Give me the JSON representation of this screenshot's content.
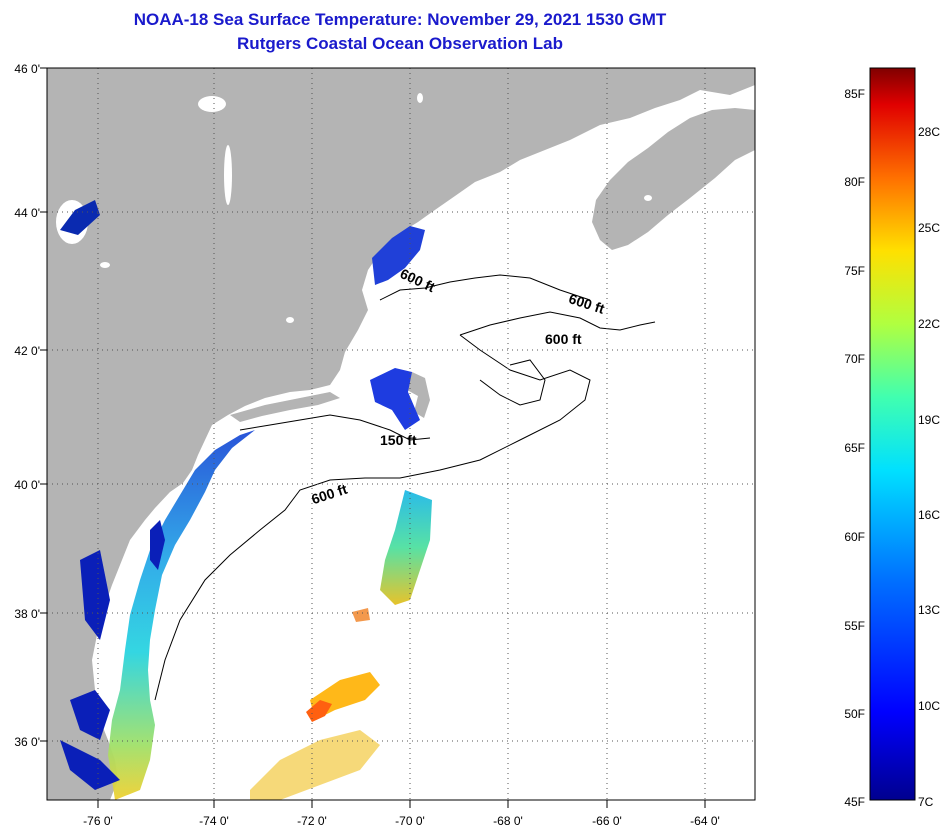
{
  "title": "NOAA-18 Sea Surface Temperature:  November 29, 2021 1530 GMT",
  "subtitle": "Rutgers Coastal Ocean Observation Lab",
  "lat_labels": [
    "46 0'",
    "44 0'",
    "42 0'",
    "40 0'",
    "38 0'",
    "36 0'"
  ],
  "lon_labels": [
    "-76 0'",
    "-74 0'",
    "-72 0'",
    "-70 0'",
    "-68 0'",
    "-66 0'",
    "-64 0'"
  ],
  "contour_labels": [
    "600 ft",
    "600 ft",
    "600 ft",
    "150 ft",
    "600 ft"
  ],
  "colorbar": {
    "f_labels": [
      "85F",
      "80F",
      "75F",
      "70F",
      "65F",
      "60F",
      "55F",
      "50F",
      "45F"
    ],
    "c_labels": [
      "28C",
      "25C",
      "22C",
      "19C",
      "16C",
      "13C",
      "10C",
      "7C"
    ]
  },
  "colors": {
    "land": "#b4b4b4",
    "title": "#1a1acc"
  }
}
